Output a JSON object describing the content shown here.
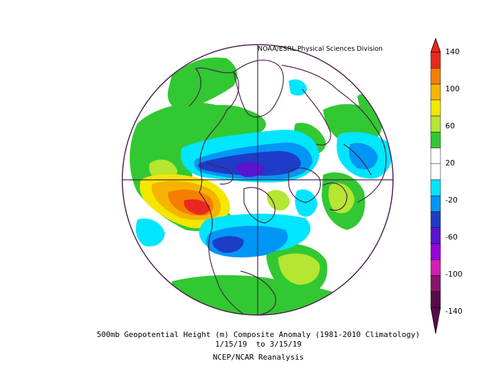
{
  "credit": "NOAA/ESRL Physical Sciences Division",
  "caption": {
    "line1": "500mb Geopotential Height (m) Composite Anomaly (1981-2010 Climatology)",
    "line2": "1/15/19  to 3/15/19",
    "line3": "NCEP/NCAR Reanalysis"
  },
  "colorbar": {
    "labels": [
      "140",
      "100",
      "60",
      "20",
      "-20",
      "-60",
      "-100",
      "-140"
    ],
    "colors": [
      "#e8281e",
      "#f57e00",
      "#f5b400",
      "#f5e600",
      "#b4e632",
      "#32c832",
      "#ffffff",
      "#ffffff",
      "#00e6ff",
      "#0096f5",
      "#1e3cc8",
      "#5a14d2",
      "#9600dc",
      "#d21eb4",
      "#8c1470",
      "#5a0a4b"
    ]
  },
  "palette": {
    "green": "#32c832",
    "lime": "#b4e632",
    "yellow": "#f5e600",
    "gold": "#f5b400",
    "orange": "#f57e00",
    "red": "#e8281e",
    "cyan": "#00e6ff",
    "blue": "#0096f5",
    "darkblue": "#1e3cc8",
    "purple": "#5a14d2",
    "coast": "#4b1e4b"
  }
}
